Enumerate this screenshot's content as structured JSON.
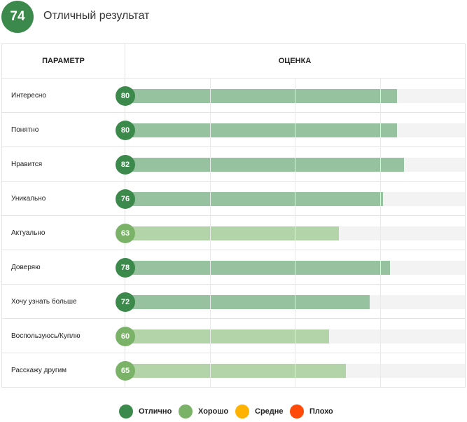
{
  "header": {
    "score": "74",
    "label": "Отличный результат"
  },
  "table": {
    "col_param": "Параметр",
    "col_score": "Оценка"
  },
  "colors": {
    "excellent_dark": "#3b8a4c",
    "excellent_bar": "#97c29f",
    "good_dark": "#7ab367",
    "good_bar": "#b3d4a8",
    "average": "#ffb300",
    "bad": "#ff4a0a",
    "track": "#f3f3f3"
  },
  "chart_data": {
    "type": "bar",
    "orientation": "horizontal",
    "categories": [
      "Интересно",
      "Понятно",
      "Нравится",
      "Уникально",
      "Актуально",
      "Доверяю",
      "Хочу узнать больше",
      "Воспользуюсь/Куплю",
      "Расскажу другим"
    ],
    "values": [
      80,
      80,
      82,
      76,
      63,
      78,
      72,
      60,
      65
    ],
    "grades": [
      "excellent",
      "excellent",
      "excellent",
      "excellent",
      "good",
      "excellent",
      "excellent",
      "good",
      "good"
    ],
    "xlim": [
      0,
      100
    ],
    "grid": true,
    "legend_position": "bottom"
  },
  "legend": [
    {
      "label": "Отлично",
      "color": "#3b8a4c"
    },
    {
      "label": "Хорошо",
      "color": "#7ab367"
    },
    {
      "label": "Средне",
      "color": "#ffb300"
    },
    {
      "label": "Плохо",
      "color": "#ff4a0a"
    }
  ]
}
